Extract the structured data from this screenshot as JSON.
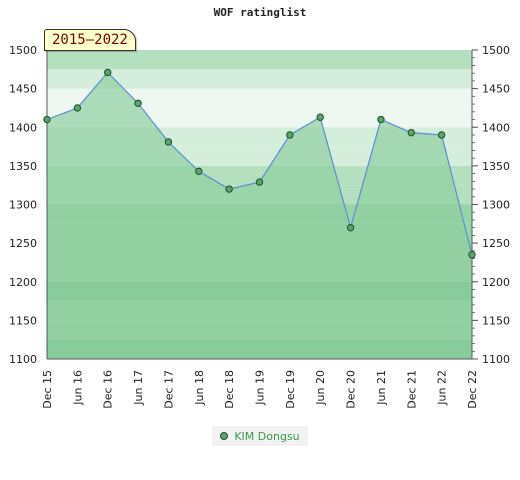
{
  "header": {
    "title": "WOF ratinglist",
    "period": "2015–2022"
  },
  "legend": {
    "label": "KIM Dongsu"
  },
  "colors": {
    "fill": "#8fcf9f",
    "line": "#5b8fd6",
    "marker": "#5aa56a",
    "band_dark": "#7dc592",
    "band_mid": "#99d4a9",
    "band_light": "#b5e0c0",
    "band_lighter": "#d5eedc",
    "band_lightest": "#eef8f1"
  },
  "chart_data": {
    "type": "area",
    "title": "WOF ratinglist",
    "categories": [
      "Dec 15",
      "Jun 16",
      "Dec 16",
      "Jun 17",
      "Dec 17",
      "Jun 18",
      "Dec 18",
      "Jun 19",
      "Dec 19",
      "Jun 20",
      "Dec 20",
      "Jun 21",
      "Dec 21",
      "Jun 22",
      "Dec 22"
    ],
    "series": [
      {
        "name": "KIM Dongsu",
        "values": [
          1410,
          1425,
          1471,
          1431,
          1381,
          1343,
          1320,
          1329,
          1390,
          1413,
          1270,
          1410,
          1393,
          1390,
          1235
        ]
      }
    ],
    "ylim": [
      1100,
      1500
    ],
    "yticks": [
      1100,
      1150,
      1200,
      1250,
      1300,
      1350,
      1400,
      1450,
      1500
    ],
    "y_minor_step": 10,
    "right_axis": true,
    "legend_position": "bottom-center",
    "grid": "horizontal bands"
  }
}
